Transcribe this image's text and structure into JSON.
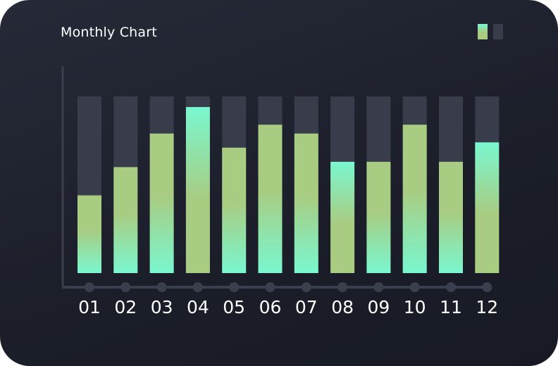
{
  "chart_data": {
    "type": "bar",
    "title": "Monthly Chart",
    "categories": [
      "01",
      "02",
      "03",
      "04",
      "05",
      "06",
      "07",
      "08",
      "09",
      "10",
      "11",
      "12"
    ],
    "values": [
      44,
      60,
      79,
      94,
      71,
      84,
      79,
      63,
      63,
      84,
      63,
      74
    ],
    "max": 100,
    "ylim": [
      0,
      100
    ],
    "xlabel": "",
    "ylabel": "",
    "grid": false,
    "legend": "top-right",
    "gradient_reversed": [
      false,
      false,
      false,
      true,
      false,
      false,
      false,
      true,
      false,
      false,
      false,
      true
    ],
    "colors": {
      "green": "#a8cc82",
      "teal": "#7af7cf",
      "track": "#393c4b",
      "axis": "#3b3e4c"
    }
  }
}
